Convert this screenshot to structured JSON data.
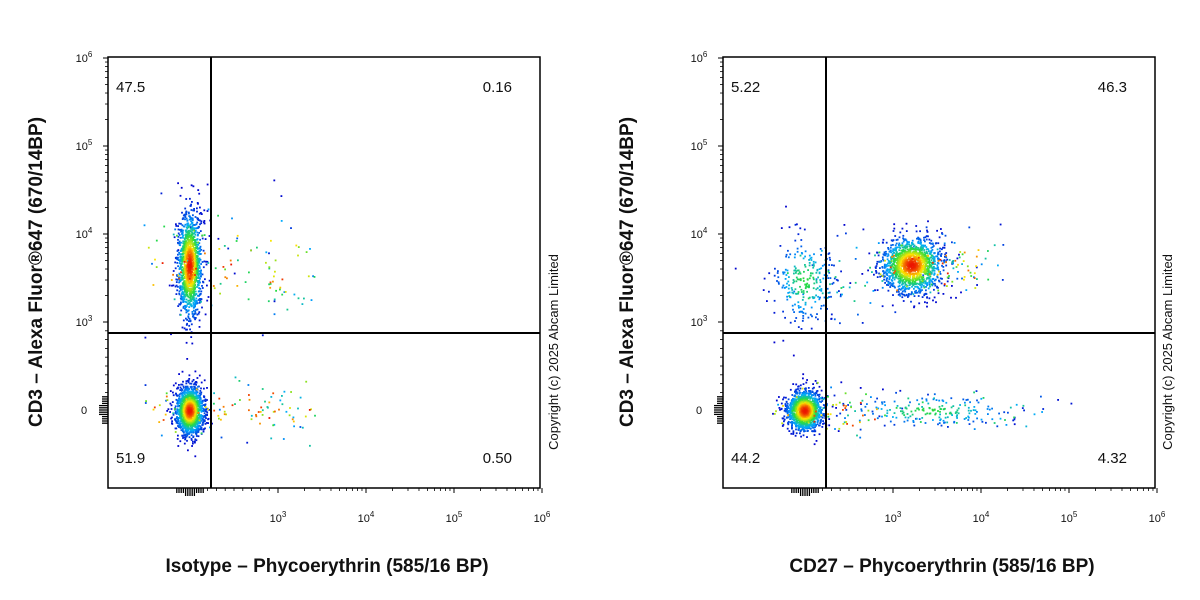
{
  "chart_data": [
    {
      "type": "scatter",
      "title": "",
      "xlabel": "Isotype – Phycoerythrin (585/16 BP)",
      "ylabel": "CD3 – Alexa Fluor®647 (670/14BP)",
      "x_scale": "biexponential",
      "y_scale": "biexponential",
      "x_ticks": [
        "10^3",
        "10^4",
        "10^5",
        "10^6"
      ],
      "y_ticks": [
        "0",
        "10^3",
        "10^4",
        "10^5",
        "10^6"
      ],
      "xlim": [
        -300,
        1000000
      ],
      "ylim": [
        -600,
        1000000
      ],
      "gate": {
        "x": 20,
        "y": 900
      },
      "quadrants": {
        "upper_left": "47.5",
        "upper_right": "0.16",
        "lower_left": "51.9",
        "lower_right": "0.50"
      },
      "populations": [
        {
          "name": "",
          "x_center": -20,
          "y_center": 4500,
          "percent": 47.5
        },
        {
          "name": "",
          "x_center": -20,
          "y_center": 0,
          "percent": 51.9
        }
      ],
      "copyright": "Copyright (c) 2025 Abcam Limited"
    },
    {
      "type": "scatter",
      "title": "",
      "xlabel": "CD27 – Phycoerythrin (585/16 BP)",
      "ylabel": "CD3 – Alexa Fluor®647 (670/14BP)",
      "x_scale": "biexponential",
      "y_scale": "biexponential",
      "x_ticks": [
        "10^3",
        "10^4",
        "10^5",
        "10^6"
      ],
      "y_ticks": [
        "0",
        "10^3",
        "10^4",
        "10^5",
        "10^6"
      ],
      "xlim": [
        -300,
        1000000
      ],
      "ylim": [
        -600,
        1000000
      ],
      "gate": {
        "x": 20,
        "y": 900
      },
      "quadrants": {
        "upper_left": "5.22",
        "upper_right": "46.3",
        "lower_left": "44.2",
        "lower_right": "4.32"
      },
      "populations": [
        {
          "name": "",
          "x_center": 1600,
          "y_center": 4500,
          "percent": 46.3
        },
        {
          "name": "",
          "x_center": -20,
          "y_center": 0,
          "percent": 44.2
        },
        {
          "name": "",
          "x_center": -20,
          "y_center": 3000,
          "percent": 5.22
        },
        {
          "name": "",
          "x_center": 2500,
          "y_center": 0,
          "percent": 4.32
        }
      ],
      "copyright": "Copyright (c) 2025 Abcam Limited"
    }
  ]
}
